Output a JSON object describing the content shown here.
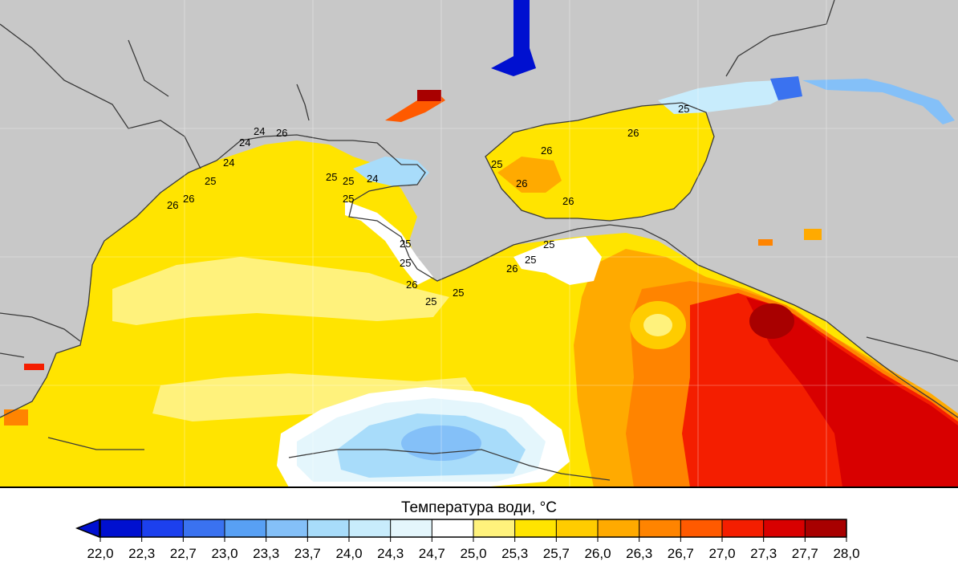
{
  "legend": {
    "title": "Температура води, °С",
    "ticks": [
      "22,0",
      "22,3",
      "22,7",
      "23,0",
      "23,3",
      "23,7",
      "24,0",
      "24,3",
      "24,7",
      "25,0",
      "25,3",
      "25,7",
      "26,0",
      "26,3",
      "26,7",
      "27,0",
      "27,3",
      "27,7",
      "28,0"
    ],
    "colors": [
      "#0010d0",
      "#1c40ee",
      "#3a72f0",
      "#58a0f4",
      "#84c0f8",
      "#a8dcfa",
      "#c8ecfc",
      "#e4f6fc",
      "#ffffff",
      "#fff27c",
      "#ffe400",
      "#ffcc00",
      "#ffaa00",
      "#ff8400",
      "#ff5a00",
      "#f41e00",
      "#d80000",
      "#a80000"
    ],
    "underflow_color": "#0010d0"
  },
  "map": {
    "land_color": "#c8c8c8",
    "isotherm_labels": [
      {
        "text": "24"
      },
      {
        "text": "24"
      },
      {
        "text": "26"
      },
      {
        "text": "24"
      },
      {
        "text": "25"
      },
      {
        "text": "26"
      },
      {
        "text": "26"
      },
      {
        "text": "25"
      },
      {
        "text": "25"
      },
      {
        "text": "24"
      },
      {
        "text": "25"
      },
      {
        "text": "25"
      },
      {
        "text": "25"
      },
      {
        "text": "26"
      },
      {
        "text": "25"
      },
      {
        "text": "25"
      },
      {
        "text": "26"
      },
      {
        "text": "25"
      },
      {
        "text": "25"
      },
      {
        "text": "25"
      },
      {
        "text": "26"
      },
      {
        "text": "26"
      },
      {
        "text": "26"
      },
      {
        "text": "26"
      },
      {
        "text": "25"
      }
    ]
  }
}
